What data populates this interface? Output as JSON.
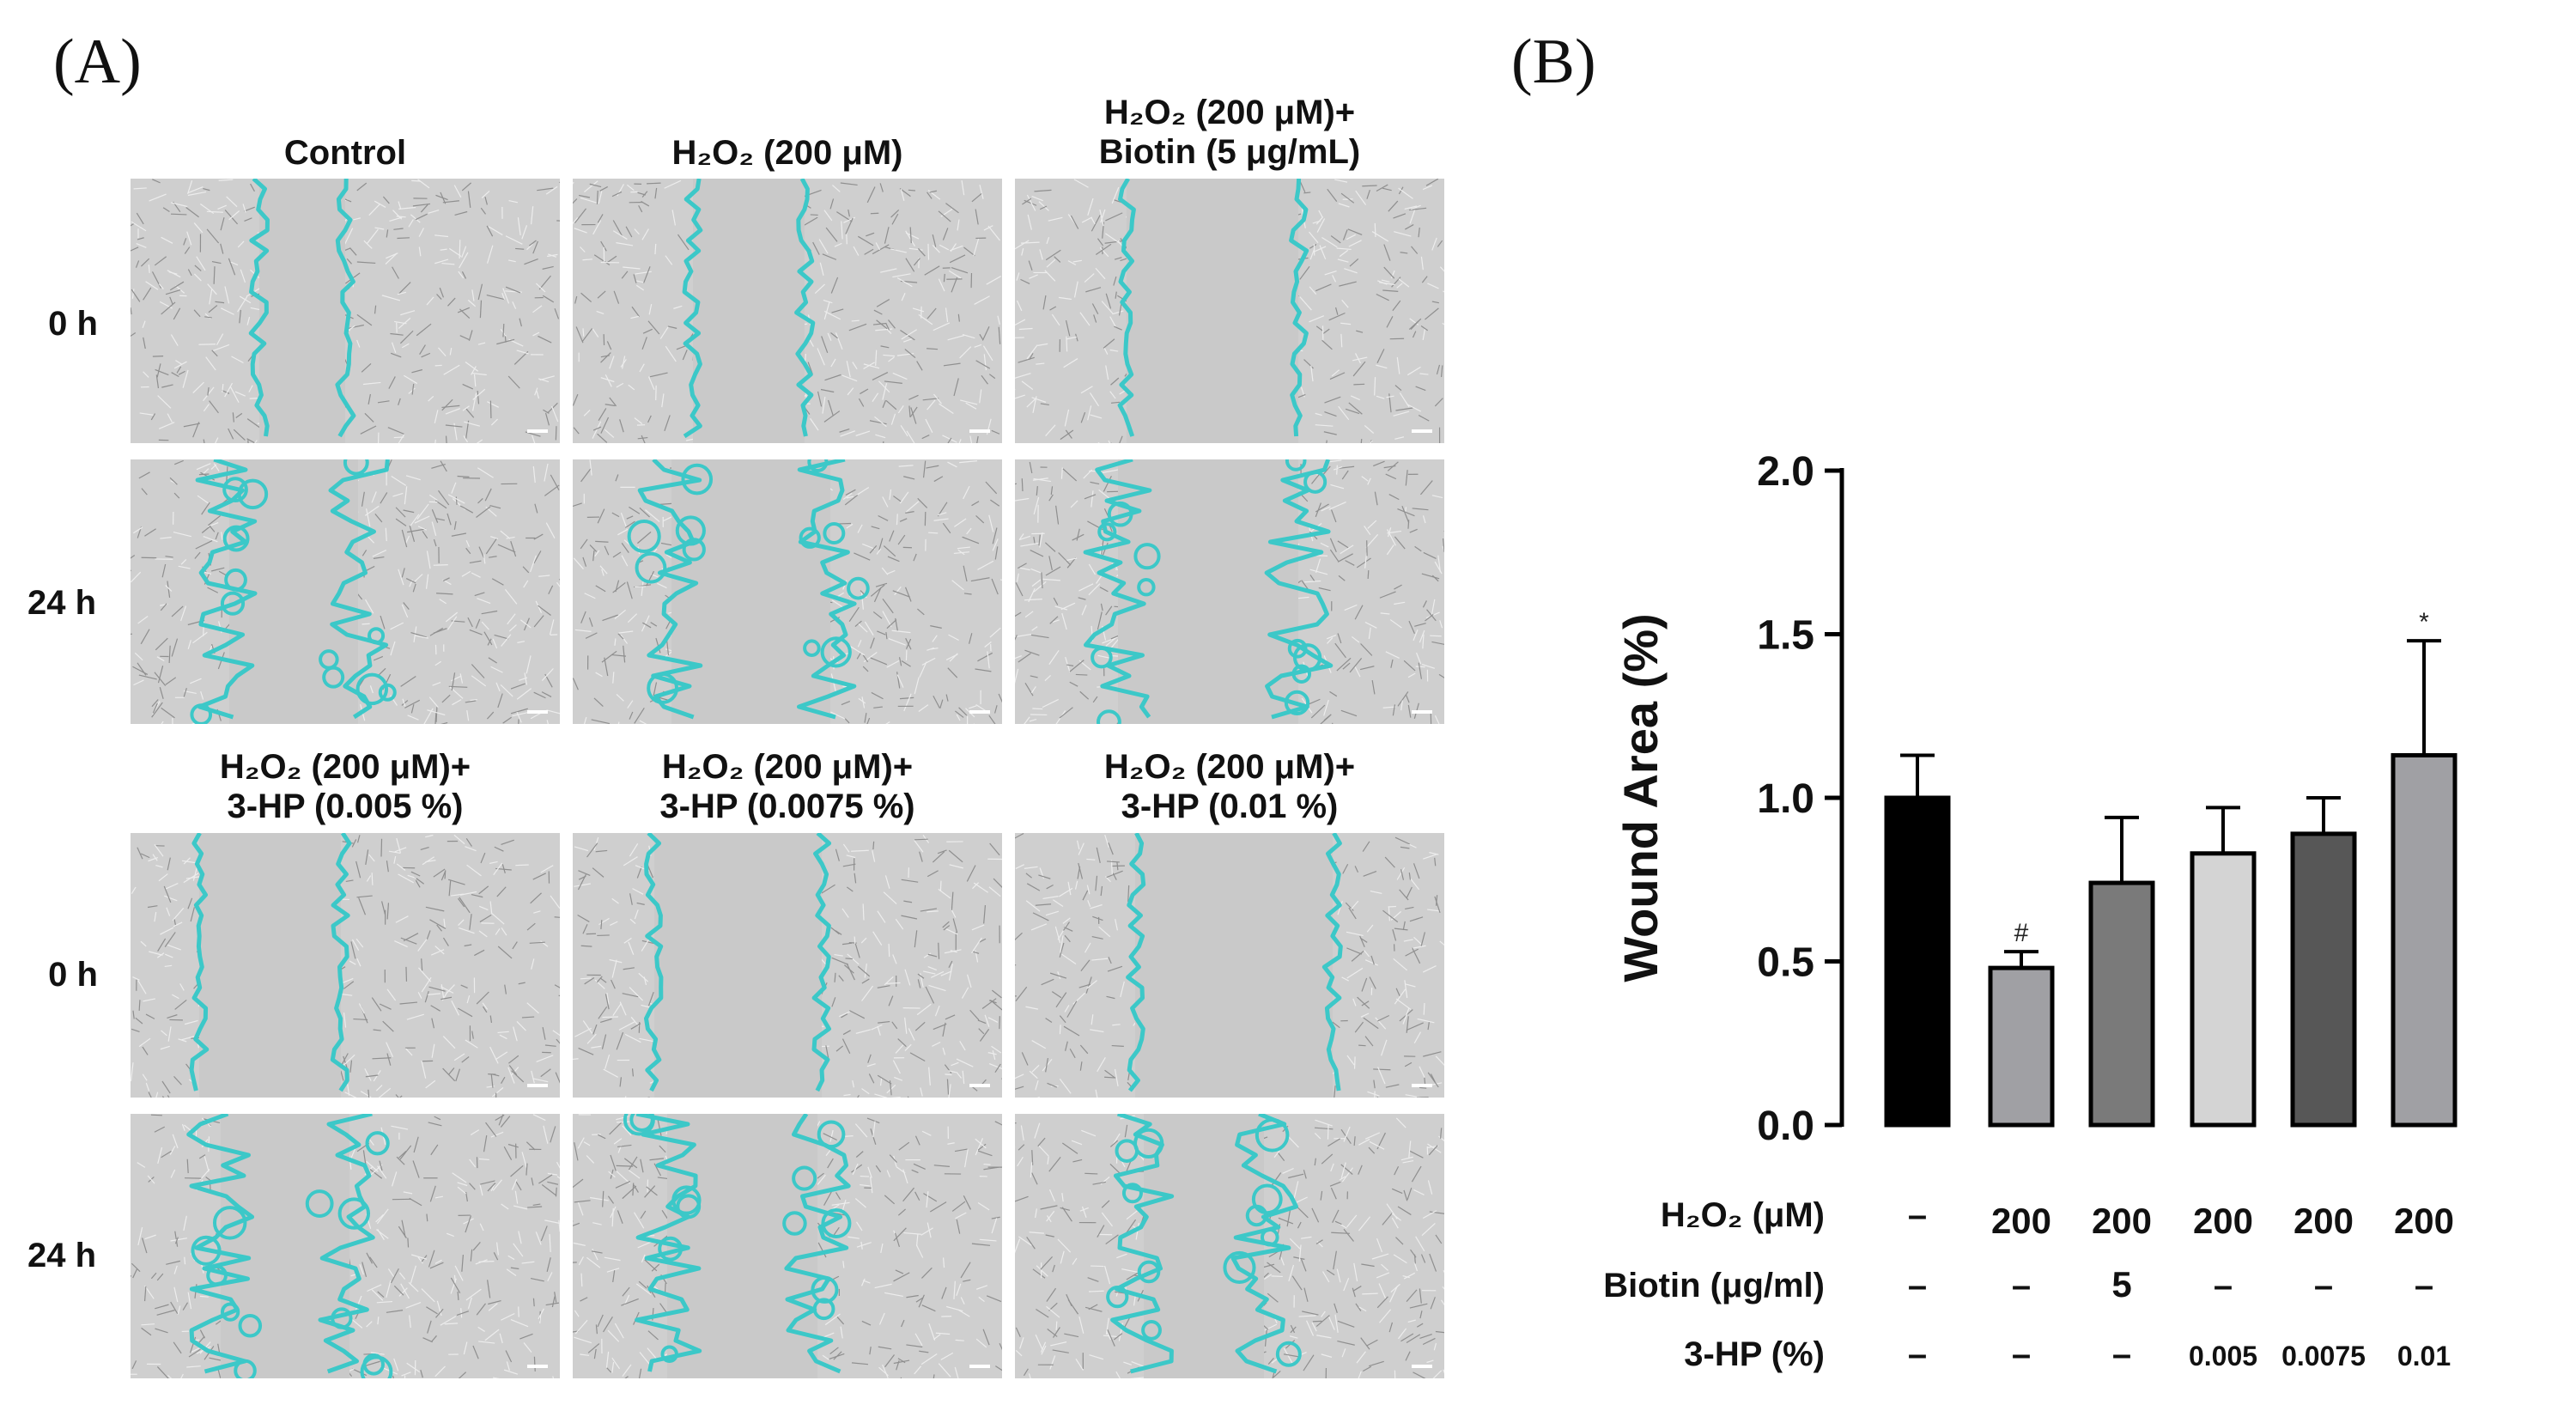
{
  "panel_a": {
    "letter": "(A)",
    "columns_top": [
      {
        "line1": "Control",
        "line2": ""
      },
      {
        "line1": "H₂O₂ (200 μM)",
        "line2": ""
      },
      {
        "line1": "H₂O₂ (200 μM)+",
        "line2": "Biotin (5 μg/mL)"
      }
    ],
    "columns_bottom": [
      {
        "line1": "H₂O₂ (200 μM)+",
        "line2": "3-HP (0.005 %)"
      },
      {
        "line1": "H₂O₂ (200 μM)+",
        "line2": "3-HP (0.0075 %)"
      },
      {
        "line1": "H₂O₂ (200 μM)+",
        "line2": "3-HP (0.01 %)"
      }
    ],
    "rows": [
      "0 h",
      "24 h",
      "0 h",
      "24 h"
    ],
    "colors": {
      "cell_background": "#cfcfcf",
      "wound_outline": "#3cc8c8"
    }
  },
  "panel_b": {
    "letter": "(B)",
    "chart_data": {
      "type": "bar",
      "ylabel": "Wound Area (%)",
      "ylim": [
        0,
        2.0
      ],
      "yticks": [
        "0.0",
        "0.5",
        "1.0",
        "1.5",
        "2.0"
      ],
      "ytick_values": [
        0,
        0.5,
        1.0,
        1.5,
        2.0
      ],
      "values": [
        1.0,
        0.48,
        0.74,
        0.83,
        0.89,
        1.13
      ],
      "errors": [
        0.13,
        0.05,
        0.2,
        0.14,
        0.11,
        0.35
      ],
      "annotations": [
        "",
        "#",
        "",
        "",
        "",
        "*"
      ],
      "bar_colors": [
        "#000000",
        "#a0a0a4",
        "#7a7a7a",
        "#d4d4d4",
        "#575757",
        "#a0a0a4"
      ],
      "treatment_table": [
        {
          "label": "H₂O₂ (μM)",
          "values": [
            "–",
            "200",
            "200",
            "200",
            "200",
            "200"
          ]
        },
        {
          "label": "Biotin (μg/ml)",
          "values": [
            "–",
            "–",
            "5",
            "–",
            "–",
            "–"
          ]
        },
        {
          "label": "3-HP (%)",
          "values": [
            "–",
            "–",
            "–",
            "0.005",
            "0.0075",
            "0.01"
          ]
        }
      ]
    }
  }
}
